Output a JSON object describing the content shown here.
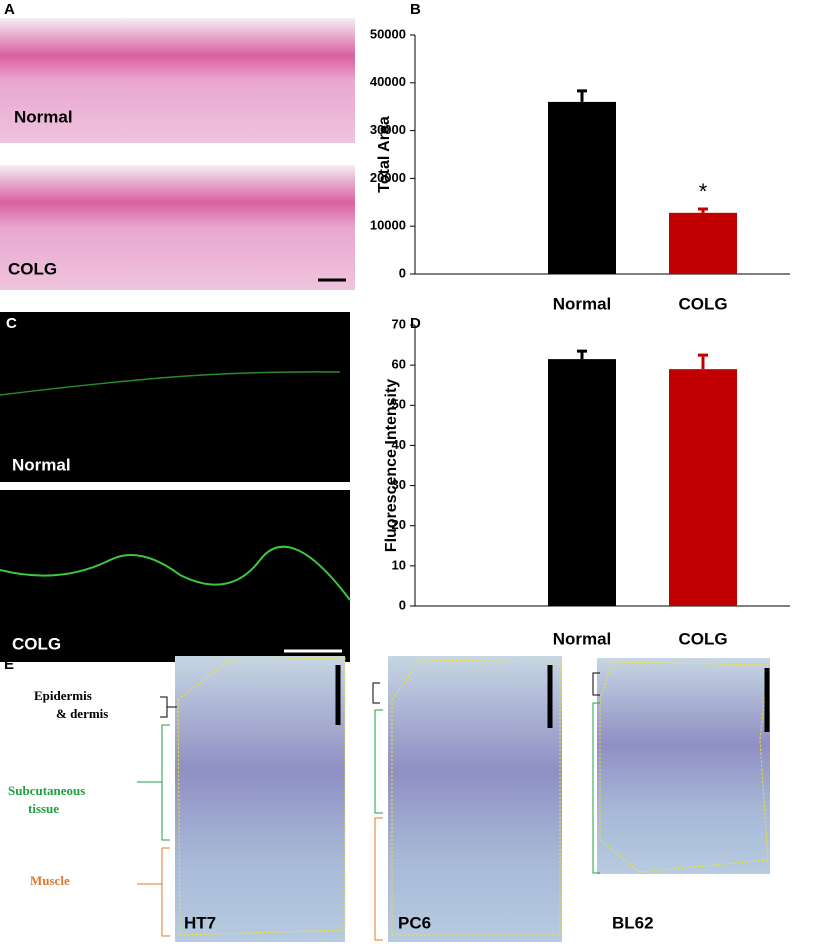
{
  "chart_data": [
    {
      "type": "bar",
      "panel_label": "B",
      "ylabel": "Total Area",
      "categories": [
        "Normal",
        "COLG"
      ],
      "values": [
        36000,
        12800
      ],
      "errors": [
        2300,
        800
      ],
      "colors": [
        "#000000",
        "#c00000"
      ],
      "annotation": "*",
      "ylim": [
        0,
        50000
      ],
      "yticks": [
        0,
        10000,
        20000,
        30000,
        40000,
        50000
      ]
    },
    {
      "type": "bar",
      "panel_label": "D",
      "ylabel": "Fluorescence Intensity",
      "categories": [
        "Normal",
        "COLG"
      ],
      "values": [
        61.5,
        59
      ],
      "errors": [
        2,
        3.5
      ],
      "colors": [
        "#000000",
        "#c00000"
      ],
      "ylim": [
        0,
        70
      ],
      "yticks": [
        0,
        10,
        20,
        30,
        40,
        50,
        60,
        70
      ]
    }
  ],
  "panel_a": {
    "label": "A",
    "images": [
      "Normal",
      "COLG"
    ]
  },
  "panel_c": {
    "label": "C",
    "images": [
      "Normal",
      "COLG"
    ]
  },
  "panel_e": {
    "label": "E",
    "layers": [
      {
        "lines": [
          "Epidermis",
          "& dermis"
        ],
        "color": "#000000"
      },
      {
        "lines": [
          "Subcutaneous",
          "tissue"
        ],
        "color": "#1fa040"
      },
      {
        "lines": [
          "Muscle"
        ],
        "color": "#e07830"
      }
    ],
    "images": [
      "HT7",
      "PC6",
      "BL62"
    ]
  }
}
